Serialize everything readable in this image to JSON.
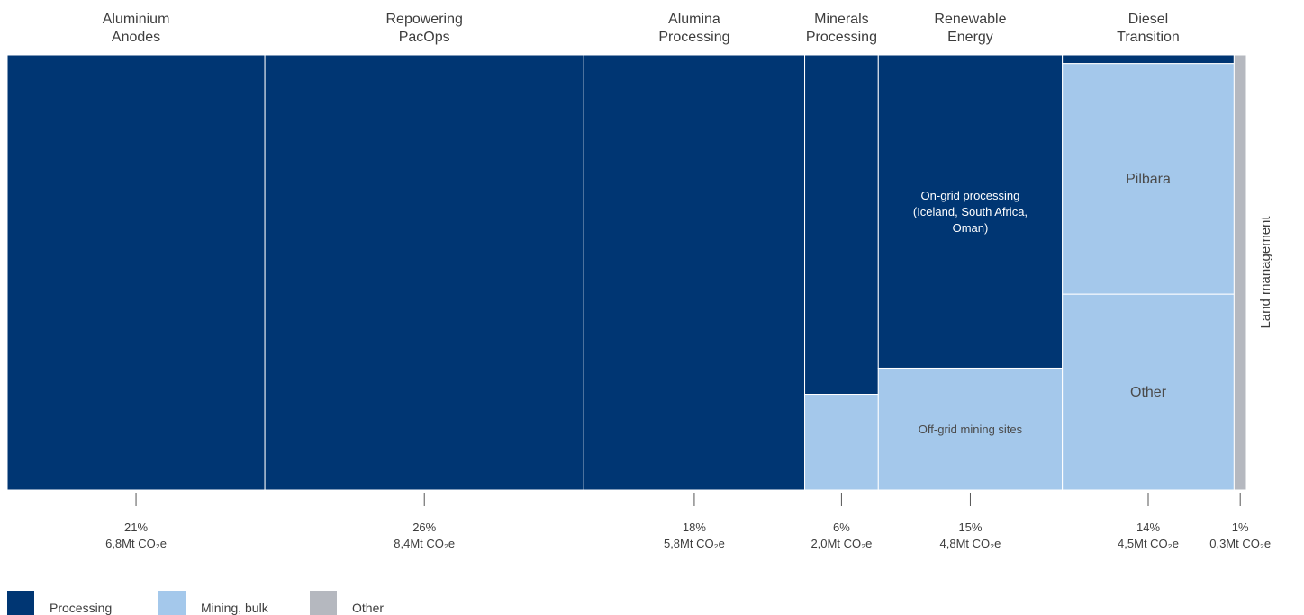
{
  "chart_data": {
    "type": "marimekko",
    "colors": {
      "Processing": "#003673",
      "Mining, bulk": "#a4c8eb",
      "Other": "#b5b8bf"
    },
    "legend": [
      "Processing",
      "Mining, bulk",
      "Other"
    ],
    "categories": [
      {
        "name_lines": [
          "Aluminium",
          "Anodes"
        ],
        "share": "21%",
        "emissions": "6,8Mt CO₂e",
        "share_value": 21,
        "segments": [
          {
            "series": "Processing",
            "fraction": 1.0,
            "label": []
          }
        ]
      },
      {
        "name_lines": [
          "Repowering",
          "PacOps"
        ],
        "share": "26%",
        "emissions": "8,4Mt CO₂e",
        "share_value": 26,
        "segments": [
          {
            "series": "Processing",
            "fraction": 1.0,
            "label": []
          }
        ]
      },
      {
        "name_lines": [
          "Alumina",
          "Processing"
        ],
        "share": "18%",
        "emissions": "5,8Mt CO₂e",
        "share_value": 18,
        "segments": [
          {
            "series": "Processing",
            "fraction": 1.0,
            "label": []
          }
        ]
      },
      {
        "name_lines": [
          "Minerals",
          "Processing"
        ],
        "share": "6%",
        "emissions": "2,0Mt CO₂e",
        "share_value": 6,
        "segments": [
          {
            "series": "Processing",
            "fraction": 0.78,
            "label": []
          },
          {
            "series": "Mining, bulk",
            "fraction": 0.22,
            "label": []
          }
        ]
      },
      {
        "name_lines": [
          "Renewable",
          "Energy"
        ],
        "share": "15%",
        "emissions": "4,8Mt CO₂e",
        "share_value": 15,
        "segments": [
          {
            "series": "Processing",
            "fraction": 0.72,
            "label": [
              "On-grid processing",
              "(Iceland, South Africa,",
              "Oman)"
            ]
          },
          {
            "series": "Mining, bulk",
            "fraction": 0.28,
            "label": [
              "Off-grid mining sites"
            ]
          }
        ]
      },
      {
        "name_lines": [
          "Diesel",
          "Transition"
        ],
        "share": "14%",
        "emissions": "4,5Mt CO₂e",
        "share_value": 14,
        "segments": [
          {
            "series": "Processing",
            "fraction": 0.02,
            "label": []
          },
          {
            "series": "Mining, bulk",
            "fraction": 0.53,
            "label": [
              "Pilbara"
            ]
          },
          {
            "series": "Mining, bulk",
            "fraction": 0.45,
            "label": [
              "Other"
            ]
          }
        ]
      },
      {
        "name_lines": [],
        "side_label": "Land management",
        "share": "1%",
        "emissions": "0,3Mt CO₂e",
        "share_value": 1,
        "segments": [
          {
            "series": "Other",
            "fraction": 1.0,
            "label": []
          }
        ]
      }
    ]
  }
}
